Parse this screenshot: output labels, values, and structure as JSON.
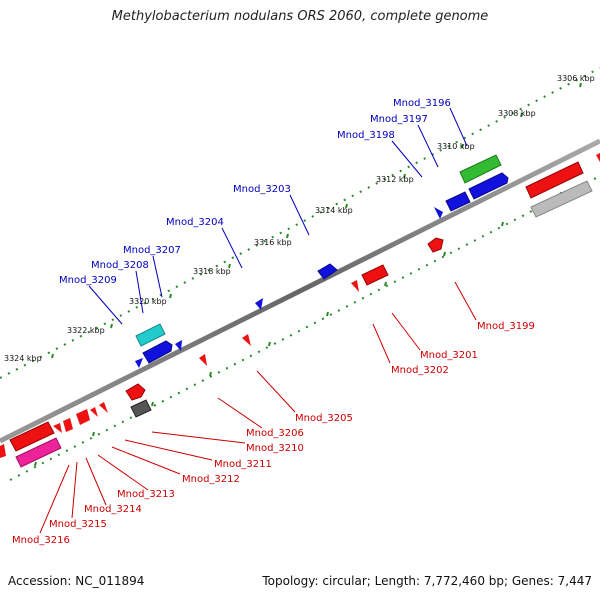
{
  "title": "Methylobacterium nodulans ORS 2060, complete genome",
  "footer": {
    "accession": "Accession: NC_011894",
    "stats": "Topology: circular; Length: 7,772,460 bp; Genes: 7,447"
  },
  "colors": {
    "backbone": "#777777",
    "tick_dots": "#2a8a2a",
    "label_top": "#0000bb",
    "label_bottom": "#cc0000",
    "gene_red": "#ee1111",
    "gene_blue": "#1111dd",
    "gene_green": "#33bb33",
    "gene_cyan": "#22cccc",
    "gene_magenta": "#ee2299",
    "gene_gray": "#555555",
    "gene_lightgray": "#bbbbbb"
  },
  "scale_labels": [
    "3306 kbp",
    "3308 kbp",
    "3310 kbp",
    "3312 kbp",
    "3314 kbp",
    "3316 kbp",
    "3318 kbp",
    "3320 kbp",
    "3322 kbp",
    "3324 kbp"
  ],
  "genes_top": [
    "Mnod_3196",
    "Mnod_3197",
    "Mnod_3198",
    "Mnod_3203",
    "Mnod_3204",
    "Mnod_3207",
    "Mnod_3208",
    "Mnod_3209"
  ],
  "genes_bottom": [
    "Mnod_3199",
    "Mnod_3201",
    "Mnod_3202",
    "Mnod_3205",
    "Mnod_3206",
    "Mnod_3210",
    "Mnod_3211",
    "Mnod_3212",
    "Mnod_3213",
    "Mnod_3214",
    "Mnod_3215",
    "Mnod_3216"
  ]
}
